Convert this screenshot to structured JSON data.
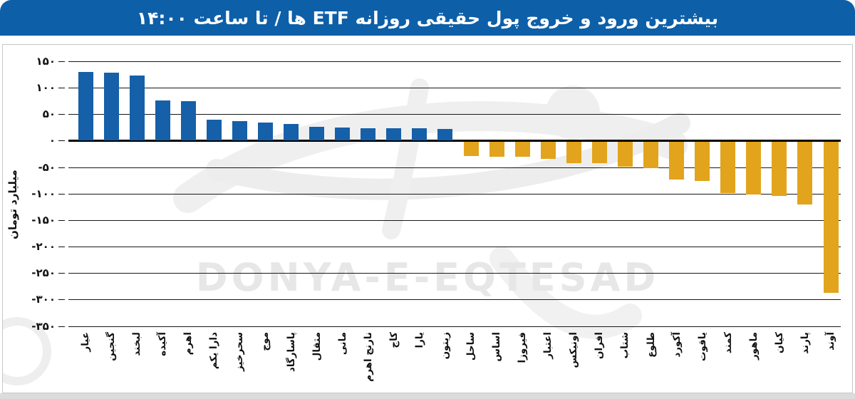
{
  "banner": {
    "title": "بیشترین ورود و خروج پول حقیقی روزانه ETF ها / تا ساعت ۱۴:۰۰",
    "bg_color": "#0d5fa8",
    "text_color": "#ffffff"
  },
  "watermark": {
    "text": "DONYA-E-EQTESAD",
    "color": "#e7e7e7"
  },
  "chart_data": {
    "type": "bar",
    "title": "بیشترین ورود و خروج پول حقیقی روزانه ETF ها / تا ساعت ۱۴:۰۰",
    "xlabel": "",
    "ylabel": "میلیارد تومان",
    "ylim": [
      -350,
      150
    ],
    "ytick_step": 50,
    "grid": true,
    "legend": "none",
    "positive_color": "#1560a8",
    "negative_color": "#e2a41c",
    "yticks_labels": [
      "۱۵۰",
      "۱۰۰",
      "۵۰",
      "۰",
      "-۵۰",
      "-۱۰۰",
      "-۱۵۰",
      "-۲۰۰",
      "-۲۵۰",
      "-۳۰۰",
      "-۳۵۰"
    ],
    "categories": [
      "عیار",
      "گنجین",
      "لبخند",
      "آکیده",
      "اهرم",
      "دارا یکم",
      "سحرخیز",
      "موج",
      "پاسارگاد",
      "مثقال",
      "مانی",
      "نارنج اهرم",
      "کاج",
      "یارا",
      "زیتون",
      "ساحل",
      "اساس",
      "فیروزا",
      "اعتبار",
      "اونیکس",
      "افران",
      "شتاب",
      "طلوع",
      "آکورد",
      "یاقوت",
      "کمند",
      "ماهور",
      "کیان",
      "پارند",
      "آوند"
    ],
    "values": [
      130,
      129,
      123,
      76,
      75,
      40,
      37,
      34,
      31,
      26,
      25,
      24,
      24,
      23,
      22,
      -29,
      -30,
      -31,
      -35,
      -42,
      -43,
      -49,
      -52,
      -74,
      -76,
      -99,
      -102,
      -104,
      -121,
      -288
    ]
  }
}
